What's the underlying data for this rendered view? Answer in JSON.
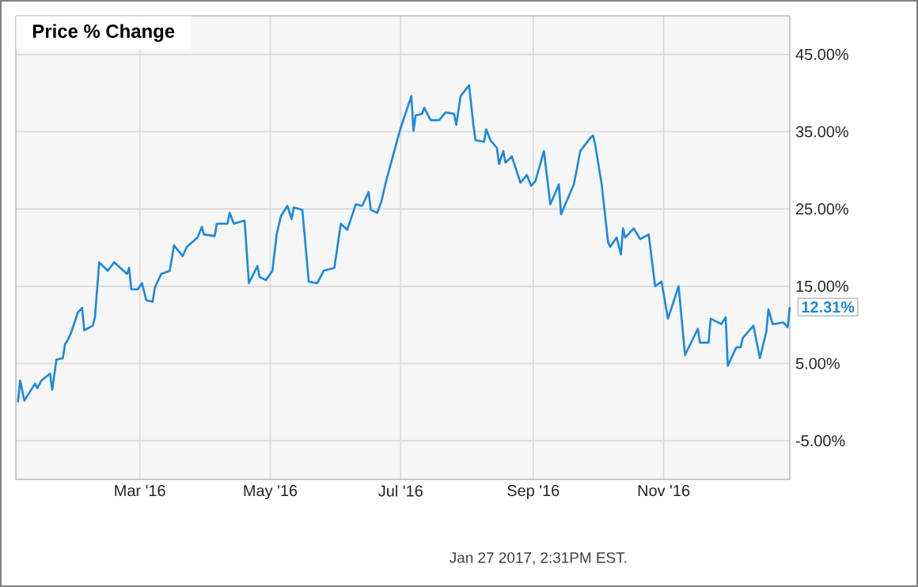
{
  "chart_data": {
    "type": "line",
    "title": "Price % Change",
    "annotations": [
      "Jan 27 2017, 2:31PM EST."
    ],
    "xlim": [
      "2016-01-03",
      "2016-12-30"
    ],
    "xticks": [
      {
        "value": "2016-03-01",
        "label": "Mar '16"
      },
      {
        "value": "2016-05-01",
        "label": "May '16"
      },
      {
        "value": "2016-07-01",
        "label": "Jul '16"
      },
      {
        "value": "2016-09-01",
        "label": "Sep '16"
      },
      {
        "value": "2016-11-01",
        "label": "Nov '16"
      }
    ],
    "ylim": [
      -10,
      50
    ],
    "yticks": [
      {
        "value": -5,
        "label": "-5.00%"
      },
      {
        "value": 5,
        "label": "5.00%"
      },
      {
        "value": 15,
        "label": "15.00%"
      },
      {
        "value": 25,
        "label": "25.00%"
      },
      {
        "value": 35,
        "label": "35.00%"
      },
      {
        "value": 45,
        "label": "45.00%"
      }
    ],
    "grid": true,
    "marker": "none",
    "line_style": "solid",
    "series": [
      {
        "color": "#1a88e0",
        "x": [
          "2016-01-04",
          "2016-01-05",
          "2016-01-07",
          "2016-01-12",
          "2016-01-13",
          "2016-01-15",
          "2016-01-19",
          "2016-01-20",
          "2016-01-22",
          "2016-01-25",
          "2016-01-26",
          "2016-01-27",
          "2016-01-29",
          "2016-02-01",
          "2016-02-03",
          "2016-02-04",
          "2016-02-08",
          "2016-02-09",
          "2016-02-11",
          "2016-02-15",
          "2016-02-18",
          "2016-02-24",
          "2016-02-25",
          "2016-02-26",
          "2016-02-29",
          "2016-03-02",
          "2016-03-04",
          "2016-03-07",
          "2016-03-08",
          "2016-03-11",
          "2016-03-15",
          "2016-03-17",
          "2016-03-21",
          "2016-03-23",
          "2016-03-28",
          "2016-03-30",
          "2016-03-31",
          "2016-04-05",
          "2016-04-06",
          "2016-04-11",
          "2016-04-12",
          "2016-04-14",
          "2016-04-19",
          "2016-04-21",
          "2016-04-25",
          "2016-04-26",
          "2016-04-29",
          "2016-05-02",
          "2016-05-04",
          "2016-05-06",
          "2016-05-09",
          "2016-05-11",
          "2016-05-12",
          "2016-05-16",
          "2016-05-19",
          "2016-05-23",
          "2016-05-26",
          "2016-05-31",
          "2016-06-03",
          "2016-06-06",
          "2016-06-10",
          "2016-06-13",
          "2016-06-16",
          "2016-06-17",
          "2016-06-20",
          "2016-06-22",
          "2016-06-24",
          "2016-06-28",
          "2016-07-01",
          "2016-07-06",
          "2016-07-07",
          "2016-07-08",
          "2016-07-11",
          "2016-07-12",
          "2016-07-15",
          "2016-07-19",
          "2016-07-22",
          "2016-07-26",
          "2016-07-27",
          "2016-07-29",
          "2016-08-02",
          "2016-08-04",
          "2016-08-05",
          "2016-08-09",
          "2016-08-10",
          "2016-08-12",
          "2016-08-15",
          "2016-08-16",
          "2016-08-18",
          "2016-08-19",
          "2016-08-22",
          "2016-08-26",
          "2016-08-29",
          "2016-08-31",
          "2016-09-02",
          "2016-09-06",
          "2016-09-09",
          "2016-09-13",
          "2016-09-14",
          "2016-09-20",
          "2016-09-23",
          "2016-09-28",
          "2016-09-29",
          "2016-09-30",
          "2016-10-03",
          "2016-10-06",
          "2016-10-07",
          "2016-10-10",
          "2016-10-12",
          "2016-10-13",
          "2016-10-14",
          "2016-10-18",
          "2016-10-21",
          "2016-10-25",
          "2016-10-28",
          "2016-10-31",
          "2016-11-03",
          "2016-11-08",
          "2016-11-11",
          "2016-11-17",
          "2016-11-18",
          "2016-11-22",
          "2016-11-23",
          "2016-11-28",
          "2016-11-30",
          "2016-12-01",
          "2016-12-05",
          "2016-12-07",
          "2016-12-08",
          "2016-12-13",
          "2016-12-16",
          "2016-12-19",
          "2016-12-20",
          "2016-12-22",
          "2016-12-27",
          "2016-12-29",
          "2016-12-30"
        ],
        "values": [
          0.0,
          2.8,
          0.2,
          2.4,
          1.8,
          2.8,
          3.7,
          1.6,
          5.5,
          5.7,
          7.5,
          7.9,
          9.1,
          11.6,
          12.2,
          9.3,
          9.9,
          11.0,
          18.1,
          17.0,
          18.1,
          16.6,
          17.4,
          14.6,
          14.6,
          15.4,
          13.2,
          13.0,
          14.8,
          16.6,
          17.0,
          20.3,
          18.9,
          20.1,
          21.3,
          22.7,
          21.7,
          21.5,
          23.1,
          23.1,
          24.5,
          23.1,
          23.5,
          15.4,
          17.6,
          16.2,
          15.8,
          17.0,
          21.7,
          24.1,
          25.4,
          23.7,
          25.2,
          24.9,
          15.6,
          15.4,
          17.0,
          17.4,
          23.1,
          22.3,
          25.6,
          25.4,
          27.2,
          24.9,
          24.5,
          26.0,
          28.4,
          32.5,
          35.5,
          39.6,
          35.1,
          37.1,
          37.3,
          38.1,
          36.5,
          36.5,
          37.5,
          37.3,
          35.9,
          39.6,
          41.0,
          35.9,
          33.9,
          33.7,
          35.3,
          33.9,
          32.9,
          30.8,
          32.5,
          31.0,
          31.8,
          28.4,
          29.4,
          28.0,
          28.6,
          32.5,
          25.6,
          28.2,
          24.3,
          28.2,
          32.5,
          34.3,
          34.5,
          33.3,
          28.2,
          20.7,
          20.1,
          21.3,
          19.1,
          22.5,
          21.3,
          22.5,
          21.1,
          21.7,
          15.0,
          15.6,
          10.8,
          15.0,
          6.1,
          9.5,
          7.7,
          7.7,
          10.8,
          10.1,
          11.0,
          4.7,
          7.1,
          7.1,
          8.3,
          9.9,
          5.7,
          9.1,
          12.0,
          10.1,
          10.3,
          9.7,
          12.31
        ],
        "value_labels": [
          null,
          null,
          null,
          null,
          null,
          null,
          null,
          null,
          null,
          null,
          null,
          null,
          null,
          null,
          null,
          null,
          null,
          null,
          null,
          null,
          null,
          null,
          null,
          null,
          null,
          null,
          null,
          null,
          null,
          null,
          null,
          null,
          null,
          null,
          null,
          null,
          null,
          null,
          null,
          null,
          null,
          null,
          null,
          null,
          null,
          null,
          null,
          null,
          null,
          null,
          null,
          null,
          null,
          null,
          null,
          null,
          null,
          null,
          null,
          null,
          null,
          null,
          null,
          null,
          null,
          null,
          null,
          null,
          null,
          null,
          null,
          null,
          null,
          null,
          null,
          null,
          null,
          null,
          null,
          null,
          null,
          null,
          null,
          null,
          null,
          null,
          null,
          null,
          null,
          null,
          null,
          null,
          null,
          null,
          null,
          null,
          null,
          null,
          null,
          null,
          null,
          null,
          null,
          null,
          null,
          null,
          null,
          null,
          null,
          null,
          null,
          null,
          null,
          null,
          null,
          null,
          null,
          null,
          null,
          null,
          null,
          null,
          null,
          null,
          null,
          null,
          null,
          null,
          null,
          null,
          null,
          null,
          null,
          null,
          null,
          null,
          "12.31%"
        ]
      }
    ]
  }
}
